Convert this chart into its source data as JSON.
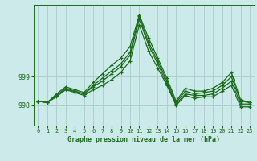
{
  "bg_color": "#cceaea",
  "grid_color": "#aacccc",
  "line_color": "#1a6b1a",
  "title": "Graphe pression niveau de la mer (hPa)",
  "xlim": [
    -0.5,
    23.5
  ],
  "ylim": [
    997.3,
    1001.5
  ],
  "yticks": [
    998,
    999
  ],
  "xticks": [
    0,
    1,
    2,
    3,
    4,
    5,
    6,
    7,
    8,
    9,
    10,
    11,
    12,
    13,
    14,
    15,
    16,
    17,
    18,
    19,
    20,
    21,
    22,
    23
  ],
  "series": [
    [
      998.15,
      998.1,
      998.3,
      998.55,
      998.45,
      998.35,
      998.55,
      998.7,
      998.9,
      999.15,
      999.55,
      1000.8,
      999.9,
      999.3,
      998.7,
      998.0,
      998.35,
      998.25,
      998.3,
      998.3,
      998.5,
      998.7,
      997.95,
      997.95
    ],
    [
      998.15,
      998.1,
      998.35,
      998.55,
      998.5,
      998.4,
      998.65,
      998.85,
      999.1,
      999.35,
      999.75,
      1001.0,
      1000.1,
      999.45,
      998.75,
      998.05,
      998.4,
      998.35,
      998.35,
      998.4,
      998.6,
      998.85,
      998.05,
      998.05
    ],
    [
      998.15,
      998.1,
      998.35,
      998.6,
      998.5,
      998.4,
      998.7,
      998.95,
      999.2,
      999.45,
      999.85,
      1001.1,
      1000.2,
      999.55,
      998.85,
      998.1,
      998.5,
      998.4,
      998.45,
      998.5,
      998.7,
      999.0,
      998.15,
      998.1
    ],
    [
      998.15,
      998.1,
      998.4,
      998.65,
      998.55,
      998.45,
      998.8,
      999.1,
      999.4,
      999.65,
      1000.05,
      1001.15,
      1000.35,
      999.65,
      998.95,
      998.15,
      998.6,
      998.5,
      998.5,
      998.6,
      998.8,
      999.15,
      998.2,
      998.1
    ]
  ]
}
